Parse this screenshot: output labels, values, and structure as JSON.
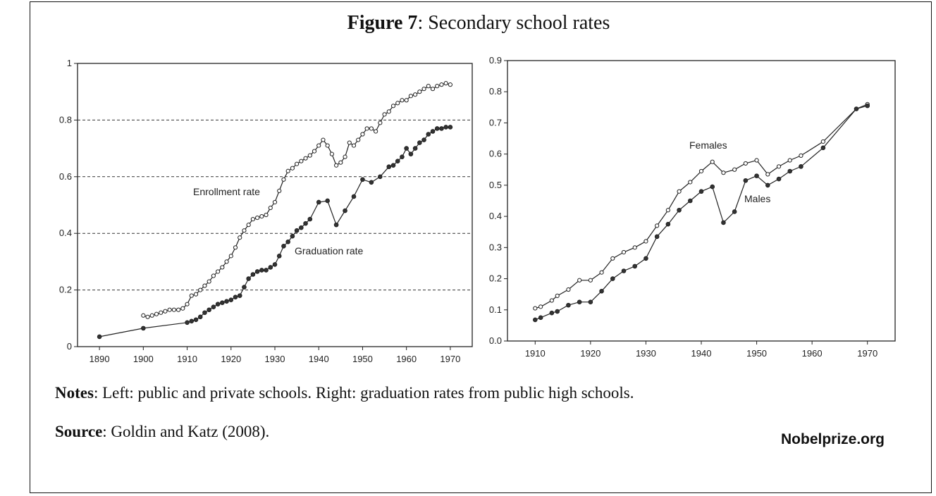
{
  "figure": {
    "title_bold": "Figure 7",
    "title_rest": ": Secondary school rates"
  },
  "notes": {
    "label": "Notes",
    "text": ": Left: public and private schools. Right: graduation rates from public high schools."
  },
  "source": {
    "label": "Source",
    "text": ": Goldin and Katz (2008)."
  },
  "watermark": "Nobelprize.org",
  "chart_data": [
    {
      "type": "line",
      "xlim": [
        1885,
        1975
      ],
      "ylim": [
        0,
        1
      ],
      "x_ticks": [
        1890,
        1900,
        1910,
        1920,
        1930,
        1940,
        1950,
        1960,
        1970
      ],
      "y_ticks": [
        0,
        0.2,
        0.4,
        0.6,
        0.8,
        1
      ],
      "y_tick_labels": [
        "0",
        "0.2",
        "0.4",
        "0.6",
        "0.8",
        "1"
      ],
      "grid": {
        "dashed_y": [
          0.2,
          0.4,
          0.6,
          0.8
        ]
      },
      "series": [
        {
          "name": "Enrollment rate",
          "marker": "open-circle",
          "x": [
            1900,
            1901,
            1902,
            1903,
            1904,
            1905,
            1906,
            1907,
            1908,
            1909,
            1910,
            1911,
            1912,
            1913,
            1914,
            1915,
            1916,
            1917,
            1918,
            1919,
            1920,
            1921,
            1922,
            1923,
            1924,
            1925,
            1926,
            1927,
            1928,
            1929,
            1930,
            1931,
            1932,
            1933,
            1934,
            1935,
            1936,
            1937,
            1938,
            1939,
            1940,
            1941,
            1942,
            1943,
            1944,
            1945,
            1946,
            1947,
            1948,
            1949,
            1950,
            1951,
            1952,
            1953,
            1954,
            1955,
            1956,
            1957,
            1958,
            1959,
            1960,
            1961,
            1962,
            1963,
            1964,
            1965,
            1966,
            1967,
            1968,
            1969,
            1970
          ],
          "y": [
            0.11,
            0.105,
            0.11,
            0.115,
            0.12,
            0.125,
            0.13,
            0.13,
            0.13,
            0.135,
            0.15,
            0.18,
            0.185,
            0.2,
            0.215,
            0.23,
            0.25,
            0.265,
            0.28,
            0.3,
            0.32,
            0.35,
            0.385,
            0.41,
            0.43,
            0.45,
            0.455,
            0.46,
            0.465,
            0.49,
            0.51,
            0.55,
            0.59,
            0.62,
            0.63,
            0.645,
            0.655,
            0.665,
            0.675,
            0.69,
            0.71,
            0.73,
            0.71,
            0.68,
            0.64,
            0.65,
            0.67,
            0.72,
            0.71,
            0.73,
            0.75,
            0.77,
            0.77,
            0.76,
            0.79,
            0.82,
            0.83,
            0.85,
            0.86,
            0.87,
            0.87,
            0.885,
            0.89,
            0.9,
            0.91,
            0.92,
            0.91,
            0.92,
            0.925,
            0.93,
            0.925
          ]
        },
        {
          "name": "Graduation rate",
          "marker": "filled-circle",
          "x": [
            1890,
            1900,
            1910,
            1911,
            1912,
            1913,
            1914,
            1915,
            1916,
            1917,
            1918,
            1919,
            1920,
            1921,
            1922,
            1923,
            1924,
            1925,
            1926,
            1927,
            1928,
            1929,
            1930,
            1931,
            1932,
            1933,
            1934,
            1935,
            1936,
            1937,
            1938,
            1940,
            1942,
            1944,
            1946,
            1948,
            1950,
            1952,
            1954,
            1956,
            1957,
            1958,
            1959,
            1960,
            1961,
            1962,
            1963,
            1964,
            1965,
            1966,
            1967,
            1968,
            1969,
            1970
          ],
          "y": [
            0.035,
            0.065,
            0.085,
            0.09,
            0.095,
            0.105,
            0.12,
            0.13,
            0.14,
            0.15,
            0.155,
            0.16,
            0.165,
            0.175,
            0.18,
            0.21,
            0.24,
            0.255,
            0.265,
            0.27,
            0.27,
            0.28,
            0.29,
            0.32,
            0.355,
            0.37,
            0.39,
            0.41,
            0.42,
            0.435,
            0.45,
            0.51,
            0.515,
            0.43,
            0.48,
            0.53,
            0.59,
            0.58,
            0.6,
            0.635,
            0.64,
            0.655,
            0.67,
            0.7,
            0.68,
            0.7,
            0.72,
            0.73,
            0.75,
            0.76,
            0.77,
            0.77,
            0.775,
            0.775
          ]
        }
      ]
    },
    {
      "type": "line",
      "xlim": [
        1905,
        1975
      ],
      "ylim": [
        0,
        0.9
      ],
      "x_ticks": [
        1910,
        1920,
        1930,
        1940,
        1950,
        1960,
        1970
      ],
      "y_ticks": [
        0,
        0.1,
        0.2,
        0.3,
        0.4,
        0.5,
        0.6,
        0.7,
        0.8,
        0.9
      ],
      "y_tick_labels": [
        "0.0",
        "0.1",
        "0.2",
        "0.3",
        "0.4",
        "0.5",
        "0.6",
        "0.7",
        "0.8",
        "0.9"
      ],
      "series": [
        {
          "name": "Females",
          "marker": "open-circle",
          "x": [
            1910,
            1911,
            1913,
            1914,
            1916,
            1918,
            1920,
            1922,
            1924,
            1926,
            1928,
            1930,
            1932,
            1934,
            1936,
            1938,
            1940,
            1942,
            1944,
            1946,
            1948,
            1950,
            1952,
            1954,
            1956,
            1958,
            1962,
            1968,
            1970
          ],
          "y": [
            0.105,
            0.11,
            0.13,
            0.145,
            0.165,
            0.195,
            0.195,
            0.22,
            0.265,
            0.285,
            0.3,
            0.32,
            0.37,
            0.42,
            0.48,
            0.51,
            0.545,
            0.575,
            0.54,
            0.55,
            0.57,
            0.58,
            0.535,
            0.56,
            0.58,
            0.595,
            0.64,
            0.745,
            0.76
          ]
        },
        {
          "name": "Males",
          "marker": "filled-circle",
          "x": [
            1910,
            1911,
            1913,
            1914,
            1916,
            1918,
            1920,
            1922,
            1924,
            1926,
            1928,
            1930,
            1932,
            1934,
            1936,
            1938,
            1940,
            1942,
            1944,
            1946,
            1948,
            1950,
            1952,
            1954,
            1956,
            1958,
            1962,
            1968,
            1970
          ],
          "y": [
            0.068,
            0.075,
            0.09,
            0.095,
            0.115,
            0.125,
            0.125,
            0.16,
            0.2,
            0.225,
            0.24,
            0.265,
            0.335,
            0.375,
            0.42,
            0.45,
            0.48,
            0.495,
            0.38,
            0.415,
            0.515,
            0.53,
            0.5,
            0.52,
            0.545,
            0.56,
            0.62,
            0.745,
            0.755
          ]
        }
      ]
    }
  ]
}
